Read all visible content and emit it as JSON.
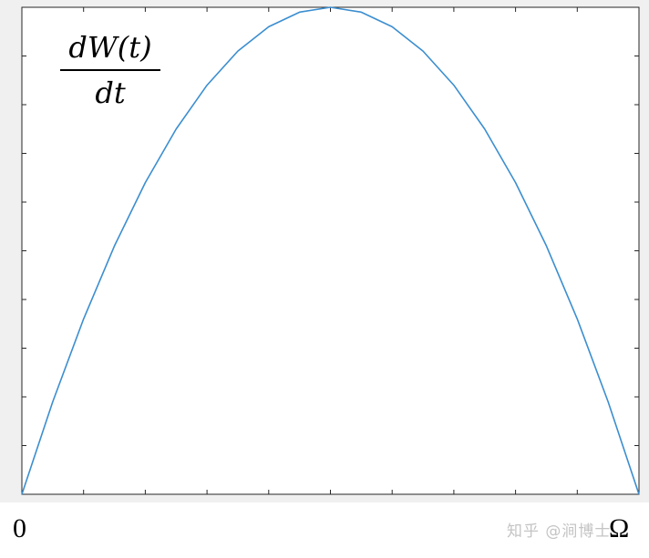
{
  "chart_data": {
    "type": "line",
    "ylabel_fraction": {
      "numerator": "dW(t)",
      "denominator": "dt"
    },
    "x_tick_labels": [
      "0",
      "Ω"
    ],
    "xlim": [
      0,
      1
    ],
    "ylim": [
      0,
      1
    ],
    "grid": false,
    "series": [
      {
        "color": "#3b8ed0",
        "x": [
          0,
          0.05,
          0.1,
          0.15,
          0.2,
          0.25,
          0.3,
          0.35,
          0.4,
          0.45,
          0.5,
          0.55,
          0.6,
          0.65,
          0.7,
          0.75,
          0.8,
          0.85,
          0.9,
          0.95,
          1
        ],
        "y": [
          0,
          0.19,
          0.36,
          0.51,
          0.64,
          0.75,
          0.84,
          0.91,
          0.96,
          0.99,
          1,
          0.99,
          0.96,
          0.91,
          0.84,
          0.75,
          0.64,
          0.51,
          0.36,
          0.19,
          0
        ]
      }
    ]
  },
  "watermark": "知乎 @涧博士"
}
